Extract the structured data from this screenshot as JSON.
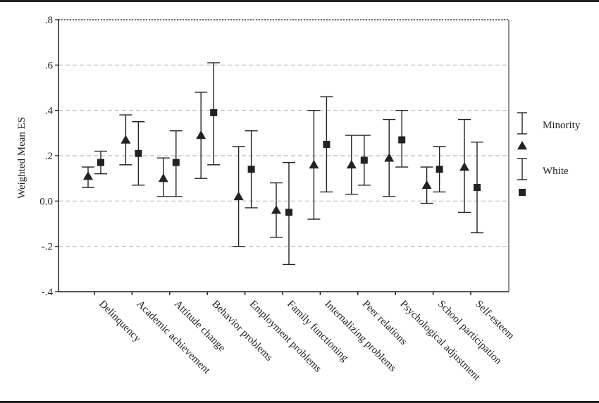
{
  "chart_data": {
    "type": "error-bar",
    "ylabel": "Weighted Mean ES",
    "ylim": [
      -0.4,
      0.8
    ],
    "yticks": [
      {
        "value": 0.8,
        "label": ".8"
      },
      {
        "value": 0.6,
        "label": ".6"
      },
      {
        "value": 0.4,
        "label": ".4"
      },
      {
        "value": 0.2,
        "label": ".2"
      },
      {
        "value": 0.0,
        "label": "0.0"
      },
      {
        "value": -0.2,
        "label": "-.2"
      },
      {
        "value": -0.4,
        "label": "-.4"
      }
    ],
    "grid": "horizontal-dashed",
    "legend_position": "right",
    "categories": [
      "Delinquency",
      "Academic achievement",
      "Attitude change",
      "Behavior problems",
      "Employment problems",
      "Family functioning",
      "Internalizing problems",
      "Peer relations",
      "Psychological adjustment",
      "School participation",
      "Self-esteem"
    ],
    "series": [
      {
        "name": "Minority",
        "marker": "triangle",
        "mean": [
          0.11,
          0.27,
          0.1,
          0.29,
          0.02,
          -0.04,
          0.16,
          0.16,
          0.19,
          0.07,
          0.15
        ],
        "lower": [
          0.06,
          0.16,
          0.02,
          0.1,
          -0.2,
          -0.16,
          -0.08,
          0.03,
          0.02,
          -0.01,
          -0.05
        ],
        "upper": [
          0.15,
          0.38,
          0.19,
          0.48,
          0.24,
          0.08,
          0.4,
          0.29,
          0.36,
          0.15,
          0.36
        ]
      },
      {
        "name": "White",
        "marker": "square",
        "mean": [
          0.17,
          0.21,
          0.17,
          0.39,
          0.14,
          -0.05,
          0.25,
          0.18,
          0.27,
          0.14,
          0.06
        ],
        "lower": [
          0.12,
          0.07,
          0.02,
          0.16,
          -0.03,
          -0.28,
          0.04,
          0.07,
          0.15,
          0.04,
          -0.14
        ],
        "upper": [
          0.22,
          0.35,
          0.31,
          0.61,
          0.31,
          0.17,
          0.46,
          0.29,
          0.4,
          0.24,
          0.26
        ]
      }
    ]
  }
}
